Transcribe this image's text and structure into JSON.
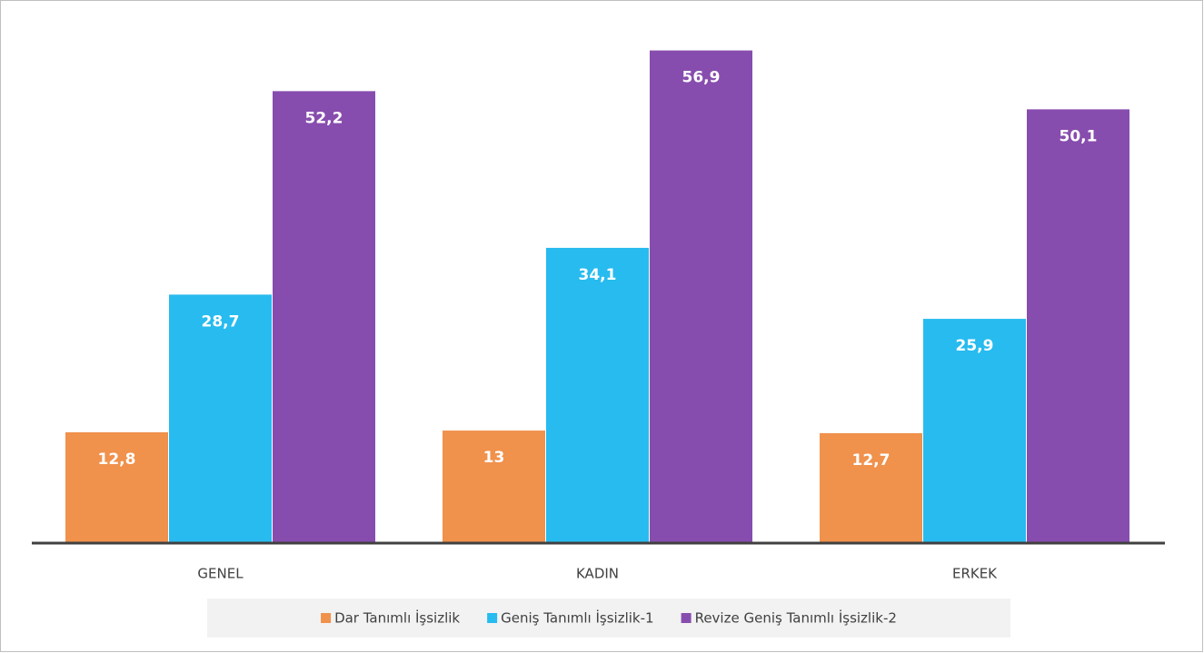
{
  "chart_data": {
    "type": "bar",
    "categories": [
      "GENEL",
      "KADIN",
      "ERKEK"
    ],
    "series": [
      {
        "name": "Dar Tanımlı İşsizlik",
        "color": "#f0914c",
        "values": [
          12.8,
          13,
          12.7
        ],
        "value_labels": [
          "12,8",
          "13",
          "12,7"
        ]
      },
      {
        "name": "Geniş Tanımlı İşsizlik-1",
        "color": "#27bbef",
        "values": [
          28.7,
          34.1,
          25.9
        ],
        "value_labels": [
          "28,7",
          "34,1",
          "25,9"
        ]
      },
      {
        "name": "Revize Geniş Tanımlı İşsizlik-2",
        "color": "#874dae",
        "values": [
          52.2,
          56.9,
          50.1
        ],
        "value_labels": [
          "52,2",
          "56,9",
          "50,1"
        ]
      }
    ],
    "ylim": [
      0,
      60
    ],
    "grid": false,
    "legend": "bottom"
  }
}
